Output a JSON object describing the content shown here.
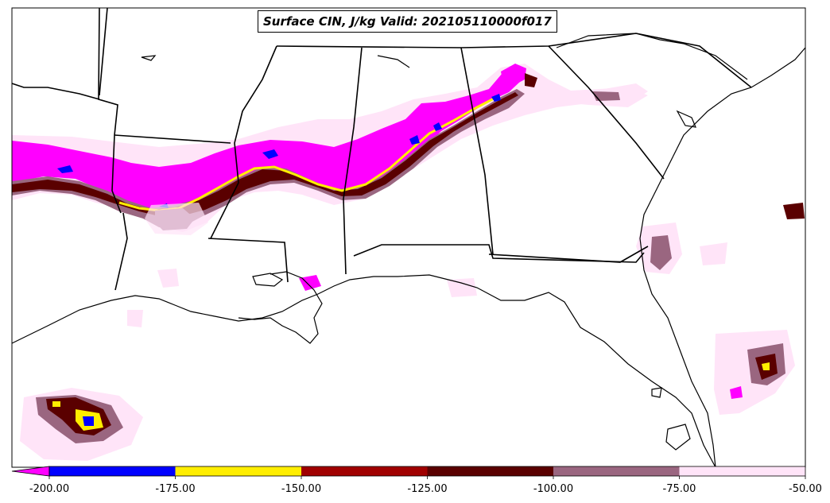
{
  "title": "Surface CIN, J/kg Valid: 202105110000f017",
  "colorbar": {
    "ticks": [
      "-200.00",
      "-175.00",
      "-150.00",
      "-125.00",
      "-100.00",
      "-75.00",
      "-50.00"
    ],
    "bins": [
      {
        "from": -200,
        "to": -175,
        "color": "#0000ff"
      },
      {
        "from": -175,
        "to": -150,
        "color": "#ffee00"
      },
      {
        "from": -150,
        "to": -125,
        "color": "#a00000"
      },
      {
        "from": -125,
        "to": -100,
        "color": "#5a0000"
      },
      {
        "from": -100,
        "to": -75,
        "color": "#9a6680"
      },
      {
        "from": -75,
        "to": -50,
        "color": "#ffe4f8"
      }
    ],
    "under_color": "#ff00ff"
  },
  "colors": {
    "magenta": "#ff00ff",
    "blue": "#0000ff",
    "yellow": "#ffee00",
    "red": "#a00000",
    "dark_red": "#5a0000",
    "mauve": "#9a6680",
    "light_pink": "#ffe4f8"
  }
}
